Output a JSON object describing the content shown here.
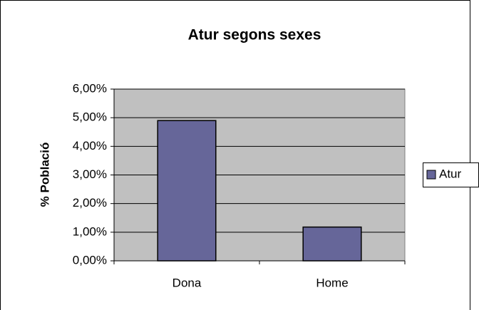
{
  "chart_data": {
    "type": "bar",
    "title": "Atur segons sexes",
    "y_label": "% Població",
    "categories": [
      "Dona",
      "Home"
    ],
    "series": [
      {
        "name": "Atur",
        "color": "#666699",
        "values": [
          4.9,
          1.18
        ]
      }
    ],
    "ylim": [
      0,
      6
    ],
    "yticks": [
      {
        "value": 0,
        "label": "0,00%"
      },
      {
        "value": 1,
        "label": "1,00%"
      },
      {
        "value": 2,
        "label": "2,00%"
      },
      {
        "value": 3,
        "label": "3,00%"
      },
      {
        "value": 4,
        "label": "4,00%"
      },
      {
        "value": 5,
        "label": "5,00%"
      },
      {
        "value": 6,
        "label": "6,00%"
      }
    ],
    "grid": true,
    "legend": "right"
  }
}
